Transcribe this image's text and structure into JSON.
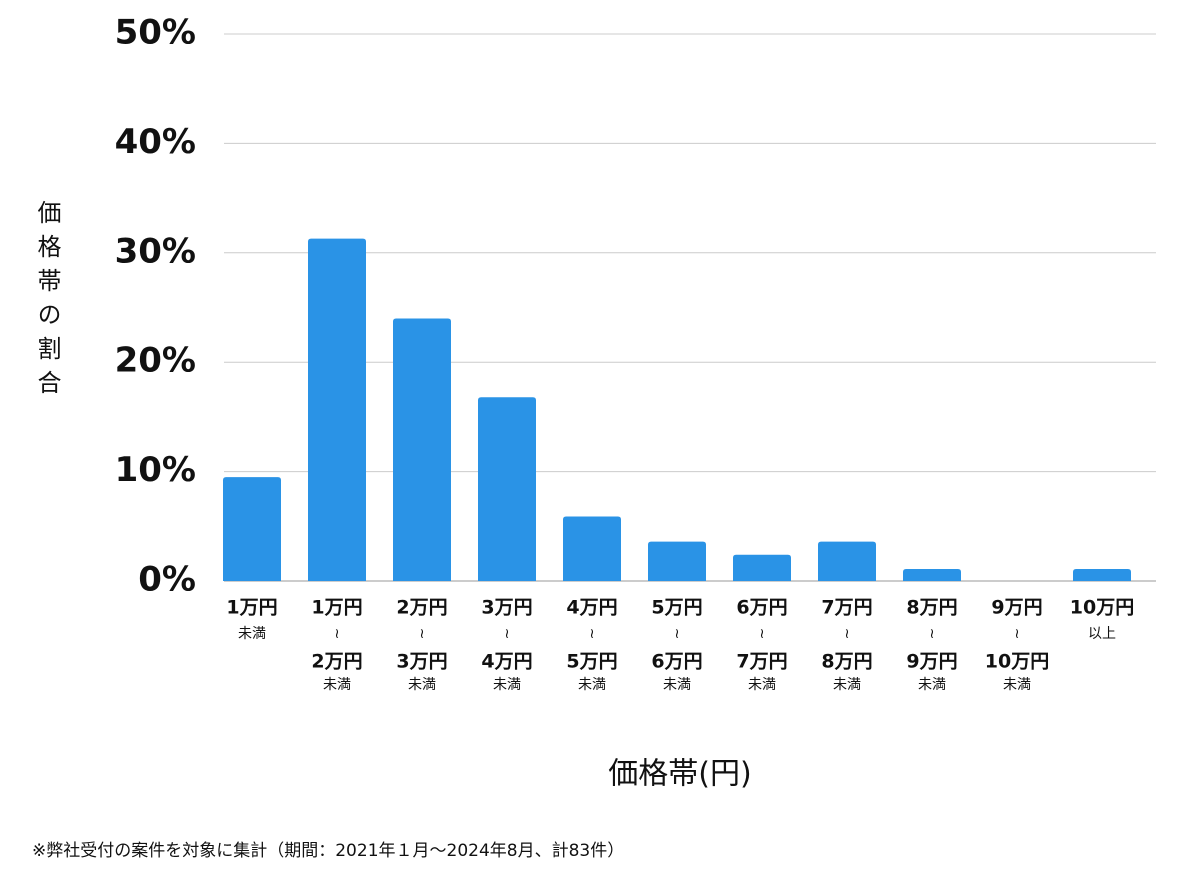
{
  "chart_data": {
    "type": "bar",
    "y_label": "価格帯の割合",
    "x_label": "価格帯(円)",
    "note": "※弊社受付の案件を対象に集計（期間：2021年１月〜2024年8月、計83件）",
    "categories": [
      [
        "1万円",
        "未満"
      ],
      [
        "1万円",
        "≀",
        "2万円",
        "未満"
      ],
      [
        "2万円",
        "≀",
        "3万円",
        "未満"
      ],
      [
        "3万円",
        "≀",
        "4万円",
        "未満"
      ],
      [
        "4万円",
        "≀",
        "5万円",
        "未満"
      ],
      [
        "5万円",
        "≀",
        "6万円",
        "未満"
      ],
      [
        "6万円",
        "≀",
        "7万円",
        "未満"
      ],
      [
        "7万円",
        "≀",
        "8万円",
        "未満"
      ],
      [
        "8万円",
        "≀",
        "9万円",
        "未満"
      ],
      [
        "9万円",
        "≀",
        "10万円",
        "未満"
      ],
      [
        "10万円",
        "以上"
      ]
    ],
    "values": [
      9.5,
      31.3,
      24.0,
      16.8,
      5.9,
      3.6,
      2.4,
      3.6,
      1.1,
      0,
      1.1
    ],
    "color": "#2a93e6",
    "ylim": [
      0,
      50
    ],
    "yticks": [
      {
        "value": 0,
        "label": "0%"
      },
      {
        "value": 10,
        "label": "10%"
      },
      {
        "value": 20,
        "label": "20%"
      },
      {
        "value": 30,
        "label": "30%"
      },
      {
        "value": 40,
        "label": "40%"
      },
      {
        "value": 50,
        "label": "50%"
      }
    ],
    "grid": true
  }
}
